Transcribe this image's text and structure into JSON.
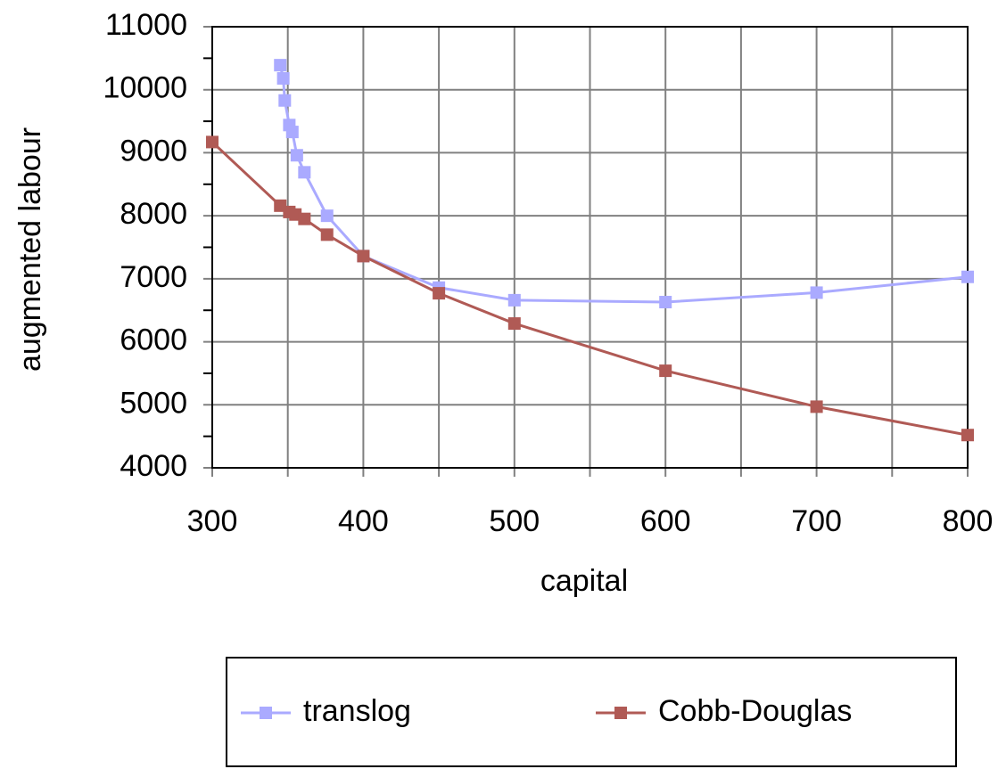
{
  "chart_data": {
    "type": "line",
    "x_label": "capital",
    "y_label": "augmented labour",
    "xlim": [
      300,
      800
    ],
    "ylim": [
      4000,
      11000
    ],
    "xticks": [
      300,
      400,
      500,
      600,
      700,
      800
    ],
    "yticks": [
      4000,
      5000,
      6000,
      7000,
      8000,
      9000,
      10000,
      11000
    ],
    "x_minor_ticks": [
      350,
      450,
      550,
      650,
      750
    ],
    "y_minor_ticks": [
      4500,
      5500,
      6500,
      7500,
      8500,
      9500,
      10500
    ],
    "grid": true,
    "legend": "bottom",
    "series": [
      {
        "name": "translog",
        "color": "#aaaaff",
        "x": [
          345,
          347,
          348,
          351,
          353,
          356,
          361,
          376,
          400,
          450,
          500,
          600,
          700,
          800
        ],
        "values": [
          10390,
          10180,
          9830,
          9440,
          9330,
          8960,
          8690,
          8000,
          7360,
          6860,
          6660,
          6630,
          6780,
          7030
        ]
      },
      {
        "name": "Cobb-Douglas",
        "color": "#b05a55",
        "x": [
          300,
          345,
          351,
          355,
          361,
          376,
          400,
          450,
          500,
          600,
          700,
          800
        ],
        "values": [
          9170,
          8160,
          8060,
          8020,
          7950,
          7700,
          7360,
          6770,
          6290,
          5540,
          4970,
          4520
        ]
      }
    ]
  }
}
